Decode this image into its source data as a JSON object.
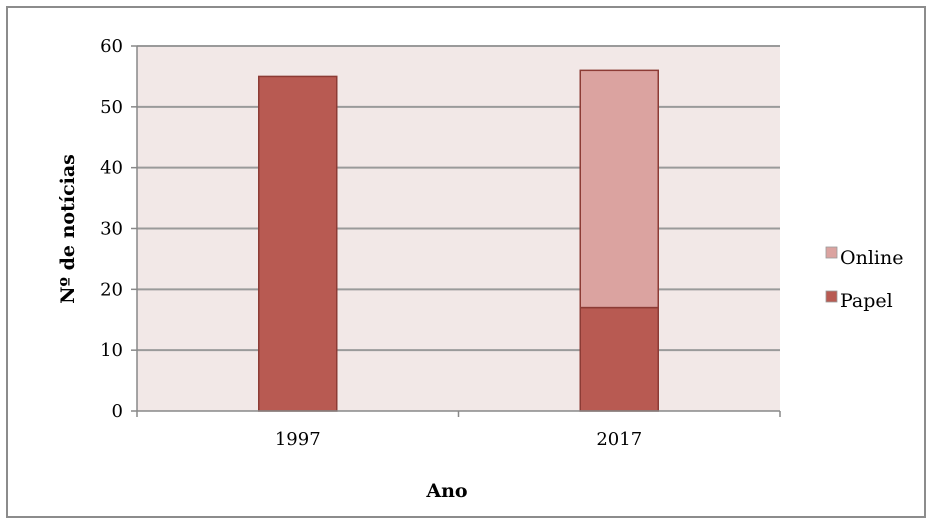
{
  "chart_data": {
    "type": "bar",
    "stacked": true,
    "categories": [
      "1997",
      "2017"
    ],
    "series": [
      {
        "name": "Papel",
        "values": [
          55,
          17
        ],
        "color": "#b85a52"
      },
      {
        "name": "Online",
        "values": [
          0,
          39
        ],
        "color": "#dba3a0"
      }
    ],
    "xlabel": "Ano",
    "ylabel": "Nº de notícias",
    "ylim": [
      0,
      60
    ],
    "yticks": [
      "0",
      "10",
      "20",
      "30",
      "40",
      "50",
      "60"
    ],
    "grid": true,
    "plot_background": "#f2e8e7",
    "legend_position": "right",
    "legend": [
      "Online",
      "Papel"
    ]
  }
}
